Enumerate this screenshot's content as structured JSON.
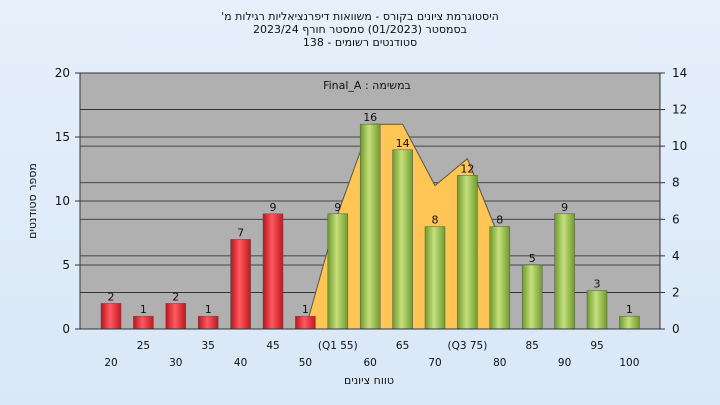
{
  "title_lines": [
    "היסטוגרמת ציונים בקורס - משוואות דיפרנציאליות רגילות מ'",
    "בסמסטר  (01/2023)  סמסטר חורף  2023/24",
    "סטודנטים רשומים - 138"
  ],
  "chart_data": {
    "type": "bar",
    "overlay_label": "במשימה : Final_A",
    "xlabel": "טווח ציונים",
    "ylabel": "מספר סטודנטים",
    "ylim": [
      0,
      20
    ],
    "y_ticks": [
      "0",
      "5",
      "10",
      "15",
      "20"
    ],
    "y2lim": [
      0,
      14
    ],
    "y2_ticks": [
      "0",
      "2",
      "4",
      "6",
      "8",
      "10",
      "12",
      "14"
    ],
    "grid": true,
    "bar_ticks_lower": [
      "20",
      "30",
      "40",
      "50",
      "60",
      "70",
      "80",
      "90",
      "100"
    ],
    "bar_ticks_upper": [
      "25",
      "35",
      "45",
      "(Q1 55)",
      "65",
      "(Q3 75)",
      "85",
      "95"
    ],
    "categories": [
      "20",
      "25",
      "30",
      "35",
      "40",
      "45",
      "50",
      "55",
      "60",
      "65",
      "70",
      "75",
      "80",
      "85",
      "90",
      "95",
      "100"
    ],
    "values": [
      2,
      1,
      2,
      1,
      7,
      9,
      1,
      9,
      16,
      14,
      8,
      12,
      8,
      5,
      9,
      3,
      1
    ],
    "bar_colors": [
      "red",
      "red",
      "red",
      "red",
      "red",
      "red",
      "red",
      "green",
      "green",
      "green",
      "green",
      "green",
      "green",
      "green",
      "green",
      "green",
      "green"
    ],
    "overlay_series": [
      {
        "x": "50",
        "y": 0
      },
      {
        "x": "55",
        "y": 9
      },
      {
        "x": "60",
        "y": 16
      },
      {
        "x": "65",
        "y": 16
      },
      {
        "x": "70",
        "y": 11.2
      },
      {
        "x": "75",
        "y": 13.3
      },
      {
        "x": "80",
        "y": 7
      }
    ],
    "colors": {
      "red_bar": "#e8303a",
      "green_bar": "#93bb45",
      "overlay": "#ffc655",
      "plot_bg": "#b0b0b0",
      "outer_bg": "#dde9f7"
    }
  }
}
